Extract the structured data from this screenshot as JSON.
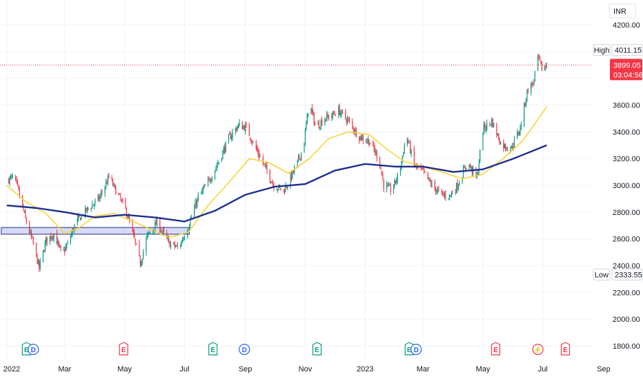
{
  "chart_data": {
    "type": "candlestick",
    "currency": "INR",
    "ylim": [
      1700,
      4300
    ],
    "y_ticks": [
      "4200.00",
      "3600.00",
      "3400.00",
      "3200.00",
      "3000.00",
      "2800.00",
      "2600.00",
      "2400.00",
      "2200.00",
      "2000.00",
      "1800.00"
    ],
    "x_ticks": [
      "2022",
      "Mar",
      "May",
      "Jul",
      "Sep",
      "Nov",
      "2023",
      "Mar",
      "May",
      "Jul",
      "Sep"
    ],
    "grid": true,
    "high": {
      "label": "High",
      "value": "4011.15"
    },
    "low": {
      "label": "Low",
      "value": "2333.55"
    },
    "last": {
      "price": "3899.05",
      "countdown": "03:04:56",
      "color": "#f23645"
    },
    "price_path": [
      [
        "2022-01-01",
        3040
      ],
      [
        "2022-01-08",
        3060
      ],
      [
        "2022-01-12",
        2980
      ],
      [
        "2022-01-20",
        2750
      ],
      [
        "2022-01-28",
        2560
      ],
      [
        "2022-02-03",
        2380
      ],
      [
        "2022-02-10",
        2590
      ],
      [
        "2022-02-18",
        2640
      ],
      [
        "2022-02-26",
        2480
      ],
      [
        "2022-03-04",
        2560
      ],
      [
        "2022-03-12",
        2720
      ],
      [
        "2022-03-24",
        2820
      ],
      [
        "2022-04-05",
        2900
      ],
      [
        "2022-04-15",
        3060
      ],
      [
        "2022-04-25",
        2920
      ],
      [
        "2022-05-03",
        2800
      ],
      [
        "2022-05-10",
        2620
      ],
      [
        "2022-05-17",
        2420
      ],
      [
        "2022-05-24",
        2620
      ],
      [
        "2022-06-03",
        2720
      ],
      [
        "2022-06-15",
        2570
      ],
      [
        "2022-06-25",
        2530
      ],
      [
        "2022-07-05",
        2700
      ],
      [
        "2022-07-15",
        2910
      ],
      [
        "2022-07-25",
        3020
      ],
      [
        "2022-08-05",
        3180
      ],
      [
        "2022-08-15",
        3350
      ],
      [
        "2022-08-25",
        3450
      ],
      [
        "2022-09-02",
        3430
      ],
      [
        "2022-09-10",
        3300
      ],
      [
        "2022-09-20",
        3150
      ],
      [
        "2022-09-30",
        3000
      ],
      [
        "2022-10-10",
        2960
      ],
      [
        "2022-10-20",
        3100
      ],
      [
        "2022-10-30",
        3280
      ],
      [
        "2022-11-05",
        3620
      ],
      [
        "2022-11-12",
        3430
      ],
      [
        "2022-11-20",
        3500
      ],
      [
        "2022-11-28",
        3520
      ],
      [
        "2022-12-05",
        3560
      ],
      [
        "2022-12-15",
        3480
      ],
      [
        "2022-12-25",
        3370
      ],
      [
        "2023-01-05",
        3330
      ],
      [
        "2023-01-15",
        3200
      ],
      [
        "2023-01-20",
        3000
      ],
      [
        "2023-01-28",
        2960
      ],
      [
        "2023-02-05",
        3100
      ],
      [
        "2023-02-12",
        3380
      ],
      [
        "2023-02-20",
        3150
      ],
      [
        "2023-03-01",
        3100
      ],
      [
        "2023-03-10",
        3000
      ],
      [
        "2023-03-20",
        2930
      ],
      [
        "2023-03-28",
        2920
      ],
      [
        "2023-04-05",
        3000
      ],
      [
        "2023-04-15",
        3170
      ],
      [
        "2023-04-25",
        3060
      ],
      [
        "2023-05-01",
        3420
      ],
      [
        "2023-05-10",
        3480
      ],
      [
        "2023-05-20",
        3300
      ],
      [
        "2023-05-30",
        3280
      ],
      [
        "2023-06-08",
        3430
      ],
      [
        "2023-06-15",
        3700
      ],
      [
        "2023-06-22",
        3780
      ],
      [
        "2023-06-26",
        3960
      ],
      [
        "2023-06-30",
        3870
      ],
      [
        "2023-07-05",
        3899.05
      ]
    ],
    "series": [
      {
        "color": "#f7d33a",
        "values": [
          [
            "2022-01-01",
            3000
          ],
          [
            "2022-01-20",
            2880
          ],
          [
            "2022-02-10",
            2790
          ],
          [
            "2022-03-01",
            2640
          ],
          [
            "2022-03-15",
            2680
          ],
          [
            "2022-04-01",
            2770
          ],
          [
            "2022-04-20",
            2790
          ],
          [
            "2022-05-10",
            2730
          ],
          [
            "2022-05-25",
            2680
          ],
          [
            "2022-06-15",
            2610
          ],
          [
            "2022-07-05",
            2650
          ],
          [
            "2022-07-25",
            2850
          ],
          [
            "2022-08-15",
            3020
          ],
          [
            "2022-09-05",
            3200
          ],
          [
            "2022-09-25",
            3170
          ],
          [
            "2022-10-15",
            3090
          ],
          [
            "2022-11-05",
            3200
          ],
          [
            "2022-11-25",
            3350
          ],
          [
            "2022-12-15",
            3400
          ],
          [
            "2023-01-05",
            3380
          ],
          [
            "2023-01-25",
            3260
          ],
          [
            "2023-02-10",
            3180
          ],
          [
            "2023-03-01",
            3140
          ],
          [
            "2023-03-20",
            3100
          ],
          [
            "2023-04-10",
            3050
          ],
          [
            "2023-04-30",
            3080
          ],
          [
            "2023-05-20",
            3190
          ],
          [
            "2023-06-10",
            3330
          ],
          [
            "2023-06-25",
            3480
          ],
          [
            "2023-07-05",
            3590
          ]
        ]
      },
      {
        "color": "#1c2e8c",
        "values": [
          [
            "2022-01-01",
            2850
          ],
          [
            "2022-02-01",
            2830
          ],
          [
            "2022-03-01",
            2800
          ],
          [
            "2022-04-01",
            2760
          ],
          [
            "2022-05-01",
            2780
          ],
          [
            "2022-06-01",
            2760
          ],
          [
            "2022-07-01",
            2730
          ],
          [
            "2022-08-01",
            2810
          ],
          [
            "2022-09-01",
            2930
          ],
          [
            "2022-10-01",
            2990
          ],
          [
            "2022-11-01",
            3010
          ],
          [
            "2022-12-01",
            3110
          ],
          [
            "2023-01-01",
            3160
          ],
          [
            "2023-02-01",
            3140
          ],
          [
            "2023-03-01",
            3140
          ],
          [
            "2023-04-01",
            3100
          ],
          [
            "2023-05-01",
            3120
          ],
          [
            "2023-06-01",
            3200
          ],
          [
            "2023-07-05",
            3300
          ]
        ]
      }
    ],
    "zone": {
      "x": [
        "2022-01-01",
        "2022-07-06"
      ],
      "y": [
        2635,
        2685
      ]
    },
    "events": [
      {
        "date": "2022-01-21",
        "letter": "E",
        "color": "#089981"
      },
      {
        "date": "2022-01-28",
        "letter": "D",
        "color": "#2962ff"
      },
      {
        "date": "2022-04-30",
        "letter": "E",
        "color": "#f23645"
      },
      {
        "date": "2022-07-30",
        "letter": "E",
        "color": "#089981"
      },
      {
        "date": "2022-08-31",
        "letter": "D",
        "color": "#2962ff"
      },
      {
        "date": "2022-11-13",
        "letter": "E",
        "color": "#089981"
      },
      {
        "date": "2023-02-15",
        "letter": "E",
        "color": "#089981"
      },
      {
        "date": "2023-02-22",
        "letter": "D",
        "color": "#2962ff"
      },
      {
        "date": "2023-05-14",
        "letter": "E",
        "color": "#f23645"
      },
      {
        "date": "2023-06-26",
        "letter": "⚡",
        "color": "#f23645"
      },
      {
        "date": "2023-07-24",
        "letter": "E",
        "color": "#f23645"
      }
    ],
    "colors": {
      "up": "#089981",
      "down": "#f23645",
      "axis_bg": "#ffffff",
      "grid": "#f0f3fa"
    }
  }
}
